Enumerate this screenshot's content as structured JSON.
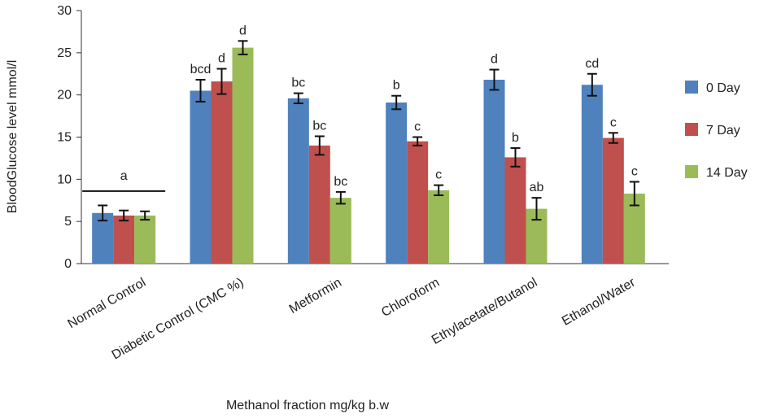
{
  "chart_data": {
    "type": "bar",
    "title": "",
    "xlabel": "Methanol fraction mg/kg b.w",
    "ylabel": "BloodGlucose level mmol/l",
    "ylim": [
      0,
      30
    ],
    "yticks": [
      0,
      5,
      10,
      15,
      20,
      25,
      30
    ],
    "grid": false,
    "legend_position": "right",
    "categories": [
      "Normal Control",
      "Diabetic Control (CMC %)",
      "Metformin",
      "Chloroform",
      "Ethylacetate/Butanol",
      "Ethanol/Water"
    ],
    "series": [
      {
        "name": "0 Day",
        "color": "#4f81bd",
        "values": [
          6.0,
          20.5,
          19.6,
          19.1,
          21.8,
          21.2
        ],
        "errors": [
          0.9,
          1.3,
          0.6,
          0.8,
          1.2,
          1.3
        ],
        "labels": [
          "",
          "bcd",
          "bc",
          "b",
          "d",
          "cd"
        ]
      },
      {
        "name": "7 Day",
        "color": "#c0504d",
        "values": [
          5.7,
          21.6,
          14.0,
          14.5,
          12.6,
          14.9
        ],
        "errors": [
          0.6,
          1.5,
          1.1,
          0.5,
          1.1,
          0.6
        ],
        "labels": [
          "",
          "d",
          "bc",
          "c",
          "b",
          "c"
        ]
      },
      {
        "name": "14 Day",
        "color": "#9bbb59",
        "values": [
          5.7,
          25.6,
          7.8,
          8.7,
          6.5,
          8.3
        ],
        "errors": [
          0.5,
          0.8,
          0.7,
          0.6,
          1.3,
          1.4
        ],
        "labels": [
          "",
          "d",
          "bc",
          "c",
          "ab",
          "c"
        ]
      }
    ],
    "group_annotations": [
      {
        "category": "Normal Control",
        "label": "a",
        "bracket": true
      }
    ]
  }
}
